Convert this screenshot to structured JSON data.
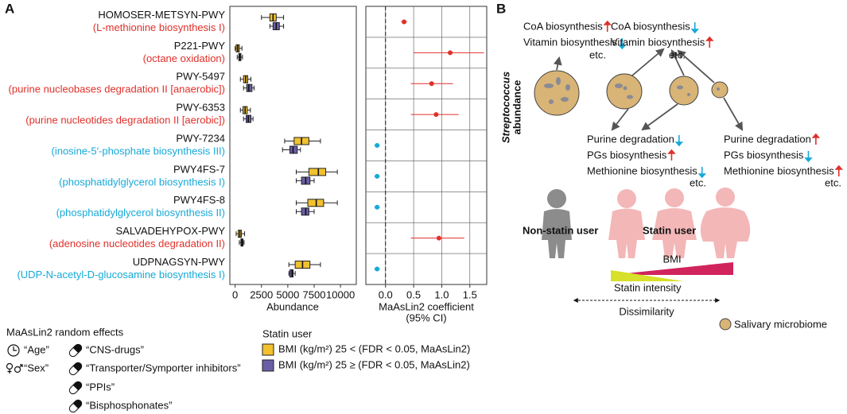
{
  "chart_data": [
    {
      "type": "box",
      "panel_label": "A",
      "categories": [
        "HOMOSER-METSYN-PWY",
        "P221-PWY",
        "PWY-5497",
        "PWY-6353",
        "PWY-7234",
        "PWY4FS-7",
        "PWY4FS-8",
        "SALVADEHYPOX-PWY",
        "UDPNAGSYN-PWY"
      ],
      "descriptions": [
        "(L-methionine biosynthesis I)",
        "(octane oxidation)",
        "(purine nucleobases degradation II [anaerobic])",
        "(purine nucleotides degradation II [aerobic])",
        "(inosine-5′-phosphate biosynthesis III)",
        "(phosphatidylglycerol biosynthesis I)",
        "(phosphatidylglycerol biosynthesis II)",
        "(adenosine nucleotides degradation II)",
        "(UDP-N-acetyl-D-glucosamine biosynthesis I)"
      ],
      "description_colors": [
        "#e0302a",
        "#e0302a",
        "#e0302a",
        "#e0302a",
        "#16a9d8",
        "#16a9d8",
        "#16a9d8",
        "#e0302a",
        "#16a9d8"
      ],
      "x_label": "Abundance",
      "xlim": [
        -500,
        11500
      ],
      "xticks": [
        0,
        2500,
        5000,
        7500,
        10000
      ],
      "legend_title": "Statin user",
      "series": [
        {
          "name": "BMI (kg/m²) 25 < (FDR < 0.05, MaAsLin2)",
          "color": "#f2c12e",
          "values": [
            [
              2500,
              3300,
              3600,
              3900,
              4600
            ],
            [
              0,
              100,
              250,
              400,
              650
            ],
            [
              500,
              800,
              1000,
              1200,
              1500
            ],
            [
              500,
              750,
              950,
              1150,
              1450
            ],
            [
              4700,
              5600,
              6300,
              7000,
              8100
            ],
            [
              5800,
              7000,
              7900,
              8600,
              9700
            ],
            [
              5800,
              6900,
              7700,
              8400,
              9700
            ],
            [
              100,
              300,
              450,
              600,
              900
            ],
            [
              5100,
              5700,
              6400,
              7100,
              8100
            ]
          ]
        },
        {
          "name": "BMI (kg/m²) 25 ≥ (FDR < 0.05, MaAsLin2)",
          "color": "#6a5fa6",
          "values": [
            [
              3300,
              3600,
              3900,
              4200,
              4600
            ],
            [
              200,
              350,
              450,
              550,
              700
            ],
            [
              800,
              1100,
              1300,
              1600,
              1800
            ],
            [
              800,
              1050,
              1250,
              1500,
              1700
            ],
            [
              4500,
              5200,
              5500,
              5900,
              6200
            ],
            [
              5800,
              6300,
              6700,
              7100,
              7500
            ],
            [
              5800,
              6300,
              6700,
              7000,
              7500
            ],
            [
              400,
              550,
              650,
              750,
              850
            ],
            [
              5100,
              5200,
              5400,
              5500,
              5700
            ]
          ]
        }
      ]
    },
    {
      "type": "forest",
      "x_label": [
        "MaAsLin2 coefficient",
        "(95% CI)"
      ],
      "xlim": [
        -0.35,
        1.8
      ],
      "xticks": [
        {
          "value": 0,
          "label": "0.0"
        },
        {
          "value": 0.5,
          "label": "0.5"
        },
        {
          "value": 1,
          "label": "1.0"
        },
        {
          "value": 1.5,
          "label": "1.5"
        }
      ],
      "grid": true,
      "reference_line": 0,
      "values": [
        0.33,
        1.15,
        0.82,
        0.9,
        -0.15,
        -0.15,
        -0.15,
        0.95,
        -0.15
      ],
      "ci_low": [
        0.28,
        0.5,
        0.45,
        0.45,
        -0.2,
        -0.2,
        -0.2,
        0.45,
        -0.2
      ],
      "ci_high": [
        0.38,
        1.75,
        1.2,
        1.3,
        -0.1,
        -0.1,
        -0.1,
        1.4,
        -0.1
      ],
      "colors": [
        "#e0302a",
        "#e0302a",
        "#e0302a",
        "#e0302a",
        "#16a9d8",
        "#16a9d8",
        "#16a9d8",
        "#e0302a",
        "#16a9d8"
      ]
    }
  ],
  "random_effects": {
    "title": "MaAsLin2 random effects",
    "items": [
      "“Age”",
      "“Sex”",
      "“CNS-drugs”",
      "“Transporter/Symporter inhibitors”",
      "“PPIs”",
      "“Bisphosphonates”"
    ]
  },
  "panel_b": {
    "label": "B",
    "axis_label_italic": "Streptococcus",
    "axis_label": "abundance",
    "up_color": "#e0302a",
    "down_color": "#16a9d8",
    "groups": [
      {
        "items": [
          {
            "text": "CoA biosynthesis",
            "direction": "up"
          },
          {
            "text": "Vitamin biosynthesis",
            "direction": "down"
          }
        ],
        "etc": "etc."
      },
      {
        "items": [
          {
            "text": "CoA biosynthesis",
            "direction": "down"
          },
          {
            "text": "Vitamin biosynthesis",
            "direction": "up"
          }
        ],
        "etc": "etc."
      },
      {
        "items": [
          {
            "text": "Purine degradation",
            "direction": "down"
          },
          {
            "text": "PGs biosynthesis",
            "direction": "up"
          },
          {
            "text": "Methionine biosynthesis",
            "direction": "down"
          }
        ],
        "etc": "etc."
      },
      {
        "items": [
          {
            "text": "Purine degradation",
            "direction": "up"
          },
          {
            "text": "PGs biosynthesis",
            "direction": "down"
          },
          {
            "text": "Methionine biosynthesis",
            "direction": "up"
          }
        ],
        "etc": "etc."
      }
    ],
    "non_statin_user": "Non-statin user",
    "statin_user": "Statin user",
    "bmi": "BMI",
    "statin_intensity": "Statin intensity",
    "dissimilarity": "Dissimilarity",
    "legend": "Salivary microbiome"
  }
}
